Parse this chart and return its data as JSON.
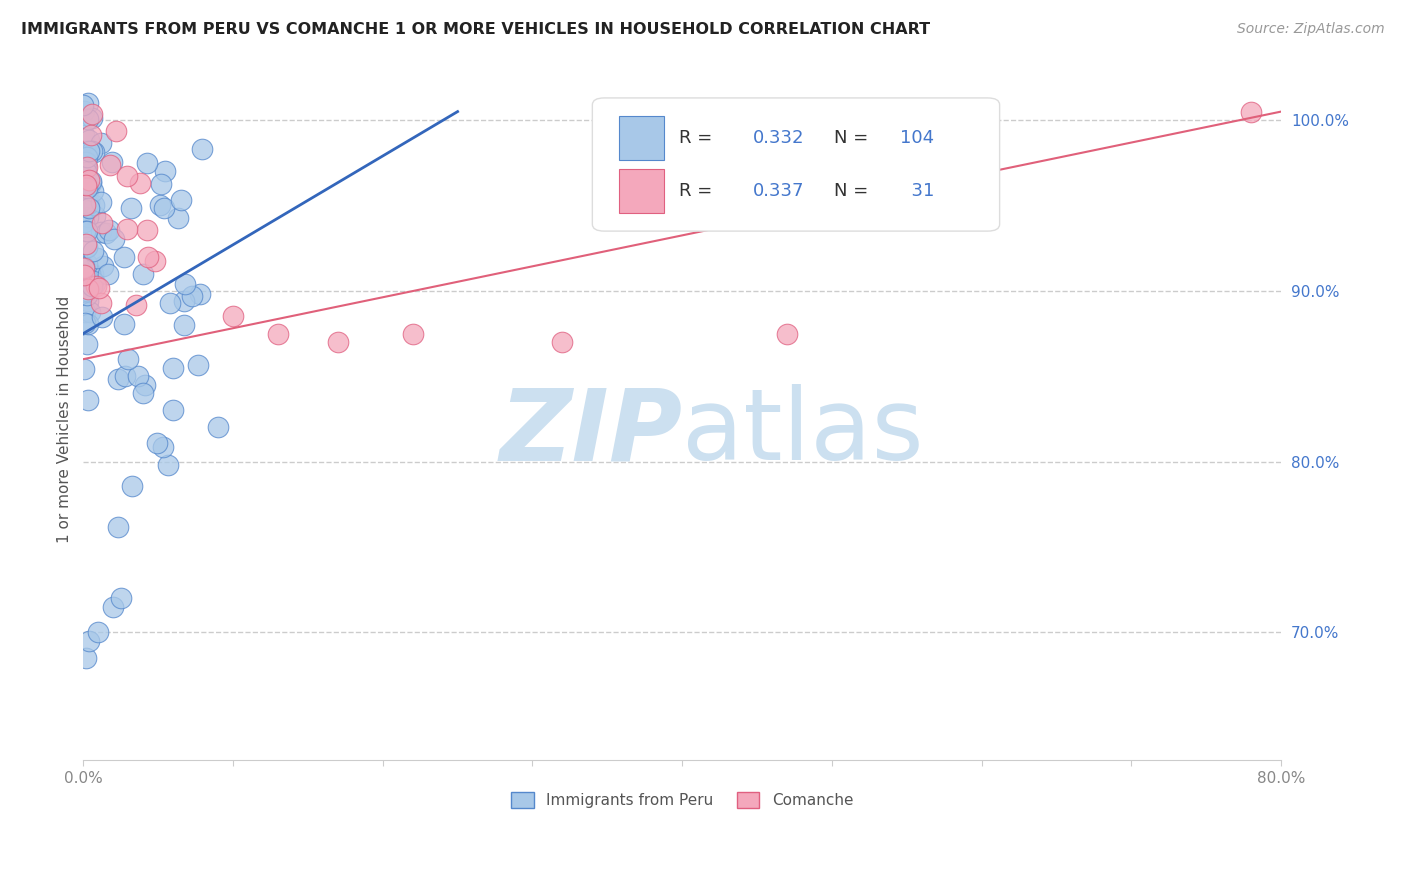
{
  "title": "IMMIGRANTS FROM PERU VS COMANCHE 1 OR MORE VEHICLES IN HOUSEHOLD CORRELATION CHART",
  "source": "Source: ZipAtlas.com",
  "ylabel": "1 or more Vehicles in Household",
  "xmin": 0.0,
  "xmax": 0.8,
  "ymin": 0.625,
  "ymax": 1.025,
  "peru_R": 0.332,
  "peru_N": 104,
  "comanche_R": 0.337,
  "comanche_N": 31,
  "peru_color": "#a8c8e8",
  "comanche_color": "#f4a8bc",
  "peru_edge_color": "#5588cc",
  "comanche_edge_color": "#e06080",
  "peru_line_color": "#3366bb",
  "comanche_line_color": "#e0607a",
  "legend_label_peru": "Immigrants from Peru",
  "legend_label_comanche": "Comanche",
  "watermark_zip": "ZIP",
  "watermark_atlas": "atlas",
  "watermark_color": "#d8eaf8",
  "background_color": "#ffffff",
  "grid_color": "#cccccc",
  "title_color": "#222222",
  "source_color": "#999999",
  "right_axis_color": "#4477cc",
  "tick_color": "#888888"
}
